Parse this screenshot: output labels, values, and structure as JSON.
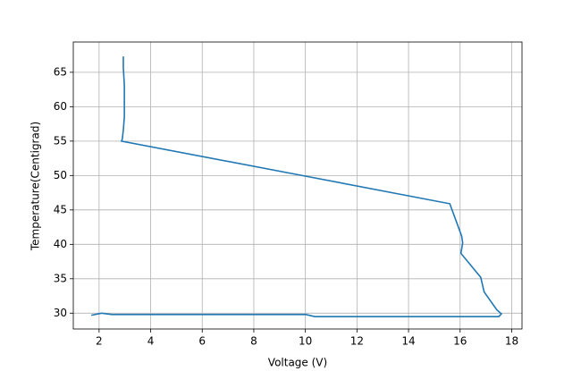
{
  "chart_data": {
    "type": "line",
    "x_label": "Voltage (V)",
    "y_label": "Temperature(Centigrad)",
    "series": [
      {
        "color": "#1f77b4",
        "x": [
          2.94,
          2.94,
          2.98,
          2.98,
          2.94,
          2.9,
          2.87,
          10.02,
          15.6,
          16.06,
          16.1,
          16.03,
          16.8,
          16.93,
          17.42,
          17.6,
          17.5,
          10.37,
          10.02,
          2.49,
          2.1,
          1.7
        ],
        "values": [
          67.3,
          65.7,
          63.1,
          58.5,
          56.6,
          55.3,
          55.0,
          49.9,
          45.9,
          41.2,
          40.2,
          38.7,
          35.2,
          33.1,
          30.5,
          29.9,
          29.5,
          29.5,
          29.8,
          29.8,
          30.0,
          29.7
        ]
      }
    ],
    "xlim": [
      1.0,
      18.4
    ],
    "ylim": [
      27.7,
      69.4
    ],
    "xticks": [
      2,
      4,
      6,
      8,
      10,
      12,
      14,
      16,
      18
    ],
    "yticks": [
      30,
      35,
      40,
      45,
      50,
      55,
      60,
      65
    ],
    "grid": true
  }
}
